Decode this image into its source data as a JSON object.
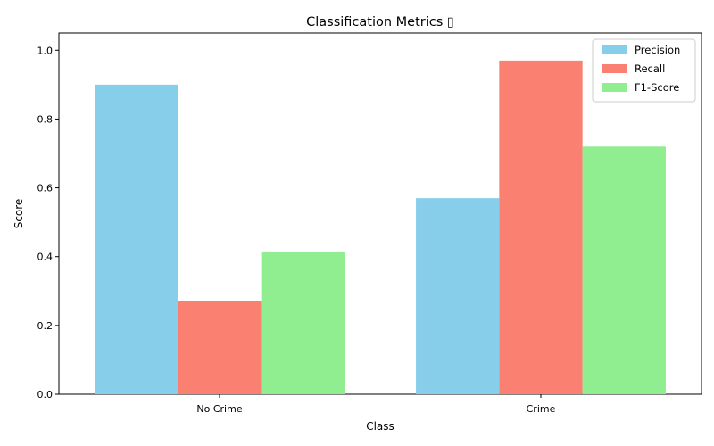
{
  "chart_data": {
    "type": "bar",
    "title": "Classification Metrics ▯",
    "xlabel": "Class",
    "ylabel": "Score",
    "categories": [
      "No Crime",
      "Crime"
    ],
    "series": [
      {
        "name": "Precision",
        "values": [
          0.9,
          0.57
        ],
        "color": "#87ceeb"
      },
      {
        "name": "Recall",
        "values": [
          0.27,
          0.97
        ],
        "color": "#fa8072"
      },
      {
        "name": "F1-Score",
        "values": [
          0.415,
          0.72
        ],
        "color": "#90ee90"
      }
    ],
    "ylim": [
      0,
      1.05
    ],
    "yticks": [
      "0.0",
      "0.2",
      "0.4",
      "0.6",
      "0.8",
      "1.0"
    ],
    "grid": false,
    "legend_position": "top-right"
  }
}
